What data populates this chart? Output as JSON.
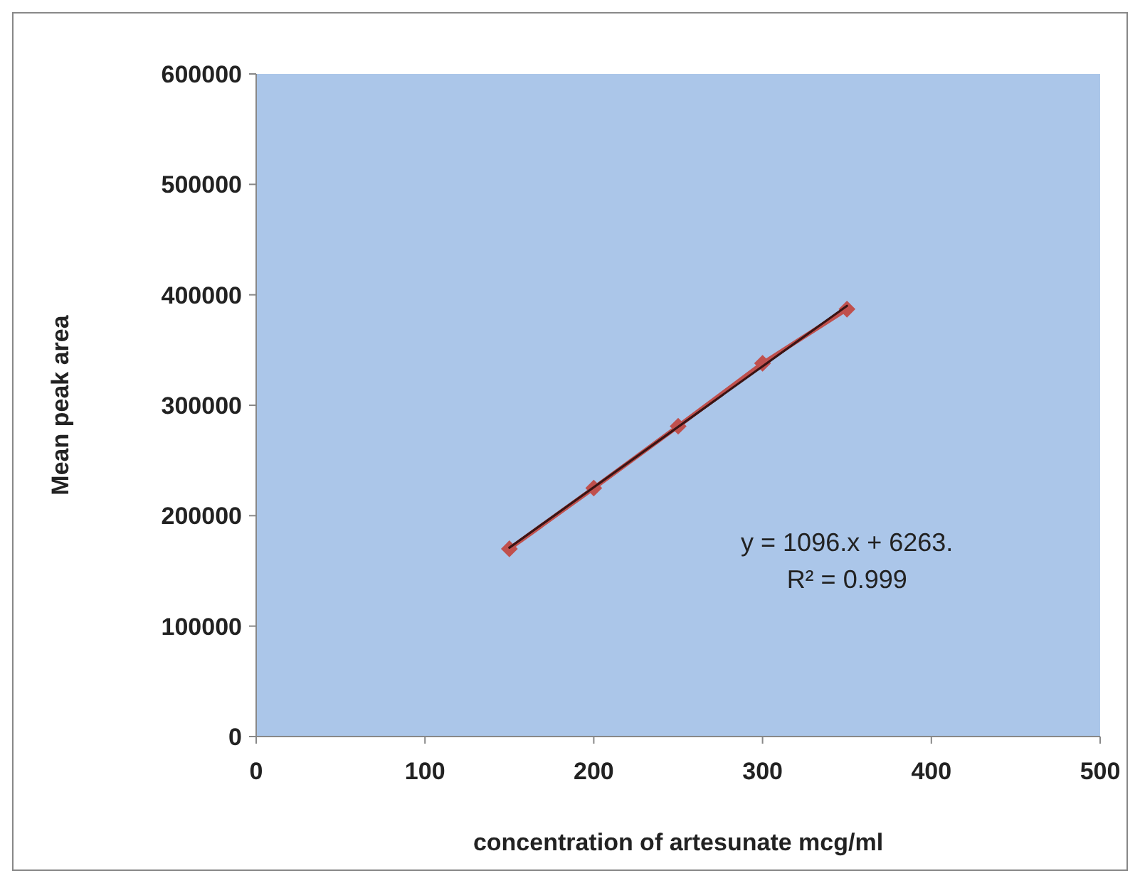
{
  "chart_data": {
    "type": "line",
    "xlabel": "concentration of artesunate mcg/ml",
    "ylabel": "Mean peak area",
    "x": [
      150,
      200,
      250,
      300,
      350
    ],
    "series": [
      {
        "color": "#c0504d",
        "values": [
          170000,
          225000,
          281000,
          338000,
          387000
        ],
        "marker": "diamond"
      },
      {
        "color": "#3a1414",
        "x": [
          150,
          350
        ],
        "values": [
          171000,
          390000
        ],
        "marker": "none"
      }
    ],
    "xlim": [
      0,
      500
    ],
    "xticks": [
      0,
      100,
      200,
      300,
      400,
      500
    ],
    "ylim": [
      0,
      600000
    ],
    "yticks": [
      0,
      100000,
      200000,
      300000,
      400000,
      500000,
      600000
    ],
    "annotations": [
      "y = 1096.x + 6263.",
      "R² = 0.999"
    ],
    "grid": false,
    "line_style": "solid"
  }
}
